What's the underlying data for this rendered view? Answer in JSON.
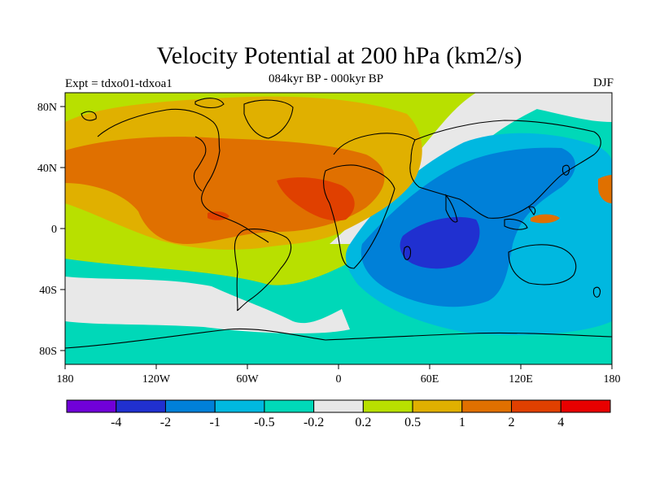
{
  "title": "Velocity Potential at 200 hPa (km2/s)",
  "subtitle": "084kyr BP - 000kyr BP",
  "left_label": "Expt = tdxo01-tdxoa1",
  "right_label": "DJF",
  "lat_ticks": [
    "80N",
    "40N",
    "0",
    "40S",
    "80S"
  ],
  "lon_ticks": [
    "180",
    "120W",
    "60W",
    "0",
    "60E",
    "120E",
    "180"
  ],
  "colorbar": {
    "colors": [
      "#7000d8",
      "#2030d0",
      "#0080d8",
      "#00b8e0",
      "#00d8b8",
      "#e8e8e8",
      "#b8e000",
      "#e0b000",
      "#e07000",
      "#e04000",
      "#e80000"
    ],
    "labels": [
      "-4",
      "-2",
      "-1",
      "-0.5",
      "-0.2",
      "0.2",
      "0.5",
      "1",
      "2",
      "4"
    ]
  }
}
